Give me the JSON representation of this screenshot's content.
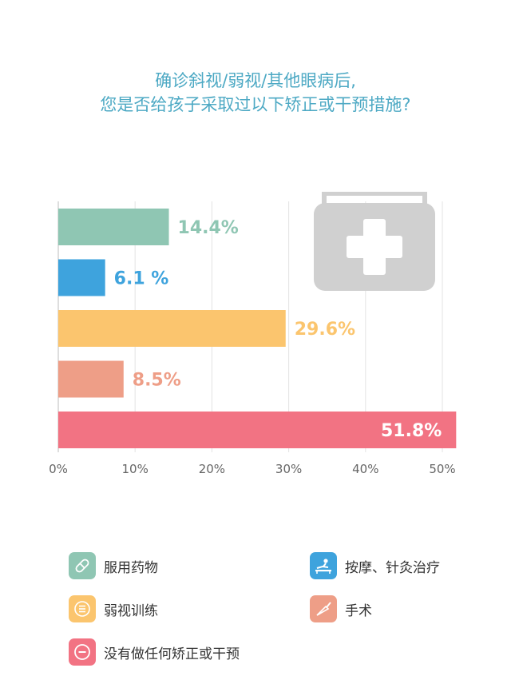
{
  "title": {
    "line1": "确诊斜视/弱视/其他眼病后,",
    "line2": "您是否给孩子采取过以下矫正或干预措施?"
  },
  "chart_data": {
    "type": "bar",
    "orientation": "horizontal",
    "categories": [
      "服用药物",
      "按摩、针灸治疗",
      "弱视训练",
      "手术",
      "没有做任何矫正或干预"
    ],
    "values": [
      14.4,
      6.1,
      29.6,
      8.5,
      51.8
    ],
    "value_labels": [
      "14.4%",
      "6.1 %",
      "29.6%",
      "8.5%",
      "51.8%"
    ],
    "colors": [
      "#8fc6b3",
      "#3ea3dd",
      "#fbc56e",
      "#ee9e87",
      "#f27383"
    ],
    "xlim": [
      0,
      52
    ],
    "xticks": [
      0,
      10,
      20,
      30,
      40,
      50
    ],
    "xtick_labels": [
      "0%",
      "10%",
      "20%",
      "30%",
      "40%",
      "50%"
    ],
    "grid": "vertical",
    "legend_position": "bottom"
  },
  "legend": [
    {
      "label": "服用药物",
      "icon": "pill-icon",
      "color": "#8fc6b3"
    },
    {
      "label": "按摩、针灸治疗",
      "icon": "massage-icon",
      "color": "#3ea3dd"
    },
    {
      "label": "弱视训练",
      "icon": "list-icon",
      "color": "#fbc56e"
    },
    {
      "label": "手术",
      "icon": "scalpel-icon",
      "color": "#ee9e87"
    },
    {
      "label": "没有做任何矫正或干预",
      "icon": "minus-circle-icon",
      "color": "#f27383"
    }
  ],
  "decoration": {
    "icon": "first-aid-kit-icon",
    "color": "#d0d0d0"
  }
}
